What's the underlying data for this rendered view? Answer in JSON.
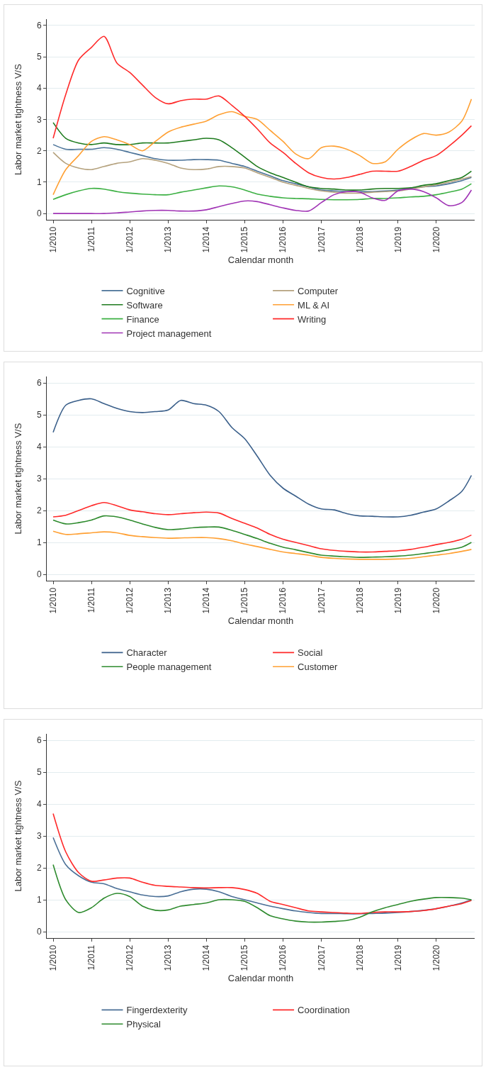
{
  "chart_data": [
    {
      "type": "line",
      "xlabel": "Calendar month",
      "ylabel": "Labor market tightness V/S",
      "grid": "y",
      "legend": "bottom",
      "xlim": [
        "2009-11",
        "2021-01"
      ],
      "ylim": [
        -0.2,
        6.2
      ],
      "yticks": [
        0,
        1,
        2,
        3,
        4,
        5,
        6
      ],
      "xticks": [
        {
          "value": "2010-01",
          "label": "1/2010"
        },
        {
          "value": "2011-01",
          "label": "1/2011"
        },
        {
          "value": "2012-01",
          "label": "1/2012"
        },
        {
          "value": "2013-01",
          "label": "1/2013"
        },
        {
          "value": "2014-01",
          "label": "1/2014"
        },
        {
          "value": "2015-01",
          "label": "1/2015"
        },
        {
          "value": "2016-01",
          "label": "1/2016"
        },
        {
          "value": "2017-01",
          "label": "1/2017"
        },
        {
          "value": "2018-01",
          "label": "1/2018"
        },
        {
          "value": "2019-01",
          "label": "1/2019"
        },
        {
          "value": "2020-01",
          "label": "1/2020"
        }
      ],
      "x": [
        "2010-01",
        "2010-05",
        "2010-09",
        "2011-01",
        "2011-05",
        "2011-09",
        "2012-01",
        "2012-05",
        "2012-09",
        "2013-01",
        "2013-05",
        "2013-09",
        "2014-01",
        "2014-05",
        "2014-09",
        "2015-01",
        "2015-05",
        "2015-09",
        "2016-01",
        "2016-05",
        "2016-09",
        "2017-01",
        "2017-05",
        "2017-09",
        "2018-01",
        "2018-05",
        "2018-09",
        "2019-01",
        "2019-05",
        "2019-09",
        "2020-01",
        "2020-05",
        "2020-09",
        "2020-12"
      ],
      "series": [
        {
          "name": "Cognitive",
          "color": "#4a7298",
          "values": [
            2.2,
            2.05,
            2.05,
            2.05,
            2.1,
            2.05,
            1.95,
            1.85,
            1.75,
            1.7,
            1.7,
            1.72,
            1.72,
            1.7,
            1.6,
            1.5,
            1.35,
            1.2,
            1.05,
            0.95,
            0.85,
            0.75,
            0.72,
            0.7,
            0.7,
            0.7,
            0.72,
            0.75,
            0.8,
            0.85,
            0.88,
            0.95,
            1.05,
            1.15
          ]
        },
        {
          "name": "Computer",
          "color": "#b5a27e",
          "values": [
            1.95,
            1.6,
            1.45,
            1.4,
            1.5,
            1.6,
            1.65,
            1.75,
            1.7,
            1.6,
            1.45,
            1.4,
            1.42,
            1.5,
            1.5,
            1.45,
            1.3,
            1.15,
            1.0,
            0.9,
            0.8,
            0.72,
            0.68,
            0.65,
            0.65,
            0.68,
            0.7,
            0.72,
            0.78,
            0.85,
            0.92,
            1.0,
            1.1,
            1.18
          ]
        },
        {
          "name": "Software",
          "color": "#1e7b1e",
          "values": [
            2.9,
            2.4,
            2.25,
            2.2,
            2.25,
            2.2,
            2.2,
            2.25,
            2.25,
            2.25,
            2.3,
            2.35,
            2.4,
            2.35,
            2.1,
            1.8,
            1.5,
            1.3,
            1.15,
            1.0,
            0.85,
            0.8,
            0.78,
            0.75,
            0.75,
            0.78,
            0.8,
            0.8,
            0.82,
            0.9,
            0.95,
            1.05,
            1.15,
            1.35
          ]
        },
        {
          "name": "ML & AI",
          "color": "#ffa033",
          "values": [
            0.6,
            1.4,
            1.85,
            2.3,
            2.45,
            2.35,
            2.2,
            2.0,
            2.3,
            2.6,
            2.75,
            2.85,
            2.95,
            3.15,
            3.25,
            3.1,
            3.0,
            2.65,
            2.3,
            1.9,
            1.75,
            2.1,
            2.15,
            2.05,
            1.85,
            1.6,
            1.65,
            2.05,
            2.35,
            2.55,
            2.5,
            2.6,
            2.95,
            3.65
          ]
        },
        {
          "name": "Finance",
          "color": "#3cb043",
          "values": [
            0.45,
            0.6,
            0.72,
            0.8,
            0.78,
            0.7,
            0.65,
            0.62,
            0.6,
            0.6,
            0.68,
            0.75,
            0.82,
            0.88,
            0.85,
            0.75,
            0.62,
            0.55,
            0.5,
            0.48,
            0.47,
            0.45,
            0.44,
            0.44,
            0.45,
            0.48,
            0.48,
            0.5,
            0.53,
            0.55,
            0.6,
            0.68,
            0.78,
            0.95
          ]
        },
        {
          "name": "Writing",
          "color": "#ff2a2a",
          "values": [
            2.4,
            3.8,
            4.9,
            5.3,
            5.65,
            4.8,
            4.5,
            4.1,
            3.7,
            3.5,
            3.6,
            3.65,
            3.65,
            3.75,
            3.45,
            3.1,
            2.7,
            2.25,
            1.95,
            1.6,
            1.3,
            1.15,
            1.1,
            1.15,
            1.25,
            1.35,
            1.35,
            1.35,
            1.5,
            1.7,
            1.85,
            2.15,
            2.5,
            2.8
          ]
        },
        {
          "name": "Project management",
          "color": "#a034b5",
          "values": [
            0,
            0,
            0,
            0,
            0,
            0.02,
            0.05,
            0.08,
            0.1,
            0.1,
            0.08,
            0.08,
            0.12,
            0.22,
            0.32,
            0.4,
            0.38,
            0.28,
            0.18,
            0.1,
            0.08,
            0.35,
            0.6,
            0.7,
            0.68,
            0.5,
            0.42,
            0.72,
            0.78,
            0.7,
            0.5,
            0.25,
            0.35,
            0.75
          ]
        }
      ]
    },
    {
      "type": "line",
      "xlabel": "Calendar month",
      "ylabel": "Labor market tightness V/S",
      "grid": "y",
      "legend": "bottom",
      "xlim": [
        "2009-11",
        "2021-01"
      ],
      "ylim": [
        -0.2,
        6.2
      ],
      "yticks": [
        0,
        1,
        2,
        3,
        4,
        5,
        6
      ],
      "xticks": [
        {
          "value": "2010-01",
          "label": "1/2010"
        },
        {
          "value": "2011-01",
          "label": "1/2011"
        },
        {
          "value": "2012-01",
          "label": "1/2012"
        },
        {
          "value": "2013-01",
          "label": "1/2013"
        },
        {
          "value": "2014-01",
          "label": "1/2014"
        },
        {
          "value": "2015-01",
          "label": "1/2015"
        },
        {
          "value": "2016-01",
          "label": "1/2016"
        },
        {
          "value": "2017-01",
          "label": "1/2017"
        },
        {
          "value": "2018-01",
          "label": "1/2018"
        },
        {
          "value": "2019-01",
          "label": "1/2019"
        },
        {
          "value": "2020-01",
          "label": "1/2020"
        }
      ],
      "x": [
        "2010-01",
        "2010-05",
        "2010-09",
        "2011-01",
        "2011-05",
        "2011-09",
        "2012-01",
        "2012-05",
        "2012-09",
        "2013-01",
        "2013-05",
        "2013-09",
        "2014-01",
        "2014-05",
        "2014-09",
        "2015-01",
        "2015-05",
        "2015-09",
        "2016-01",
        "2016-05",
        "2016-09",
        "2017-01",
        "2017-05",
        "2017-09",
        "2018-01",
        "2018-05",
        "2018-09",
        "2019-01",
        "2019-05",
        "2019-09",
        "2020-01",
        "2020-05",
        "2020-09",
        "2020-12"
      ],
      "series": [
        {
          "name": "Character",
          "color": "#3a5f8a",
          "values": [
            4.45,
            5.3,
            5.45,
            5.5,
            5.35,
            5.2,
            5.1,
            5.07,
            5.1,
            5.15,
            5.45,
            5.35,
            5.3,
            5.1,
            4.6,
            4.25,
            3.7,
            3.1,
            2.7,
            2.45,
            2.2,
            2.05,
            2.02,
            1.9,
            1.83,
            1.82,
            1.8,
            1.8,
            1.85,
            1.95,
            2.05,
            2.3,
            2.6,
            3.1
          ]
        },
        {
          "name": "Social",
          "color": "#ff2a2a",
          "values": [
            1.8,
            1.85,
            2.0,
            2.15,
            2.25,
            2.15,
            2.02,
            1.96,
            1.9,
            1.87,
            1.9,
            1.93,
            1.95,
            1.92,
            1.75,
            1.6,
            1.45,
            1.25,
            1.1,
            1.0,
            0.9,
            0.8,
            0.75,
            0.72,
            0.7,
            0.7,
            0.72,
            0.74,
            0.78,
            0.85,
            0.93,
            1.0,
            1.1,
            1.23
          ]
        },
        {
          "name": "People management",
          "color": "#2e8b2e",
          "values": [
            1.7,
            1.58,
            1.62,
            1.7,
            1.83,
            1.8,
            1.7,
            1.58,
            1.47,
            1.4,
            1.42,
            1.46,
            1.48,
            1.48,
            1.38,
            1.25,
            1.12,
            0.97,
            0.85,
            0.77,
            0.68,
            0.6,
            0.57,
            0.55,
            0.53,
            0.54,
            0.55,
            0.57,
            0.6,
            0.65,
            0.7,
            0.77,
            0.85,
            1.0
          ]
        },
        {
          "name": "Customer",
          "color": "#ffa033",
          "values": [
            1.35,
            1.25,
            1.27,
            1.3,
            1.33,
            1.3,
            1.22,
            1.18,
            1.15,
            1.13,
            1.14,
            1.15,
            1.15,
            1.12,
            1.05,
            0.95,
            0.87,
            0.78,
            0.7,
            0.65,
            0.6,
            0.53,
            0.5,
            0.48,
            0.47,
            0.47,
            0.47,
            0.48,
            0.5,
            0.55,
            0.6,
            0.65,
            0.72,
            0.78
          ]
        }
      ]
    },
    {
      "type": "line",
      "xlabel": "Calendar month",
      "ylabel": "Labor market tightness V/S",
      "grid": "y",
      "legend": "bottom",
      "xlim": [
        "2009-11",
        "2021-01"
      ],
      "ylim": [
        -0.2,
        6.2
      ],
      "yticks": [
        0,
        1,
        2,
        3,
        4,
        5,
        6
      ],
      "xticks": [
        {
          "value": "2010-01",
          "label": "1/2010"
        },
        {
          "value": "2011-01",
          "label": "1/2011"
        },
        {
          "value": "2012-01",
          "label": "1/2012"
        },
        {
          "value": "2013-01",
          "label": "1/2013"
        },
        {
          "value": "2014-01",
          "label": "1/2014"
        },
        {
          "value": "2015-01",
          "label": "1/2015"
        },
        {
          "value": "2016-01",
          "label": "1/2016"
        },
        {
          "value": "2017-01",
          "label": "1/2017"
        },
        {
          "value": "2018-01",
          "label": "1/2018"
        },
        {
          "value": "2019-01",
          "label": "1/2019"
        },
        {
          "value": "2020-01",
          "label": "1/2020"
        }
      ],
      "x": [
        "2010-01",
        "2010-05",
        "2010-09",
        "2011-01",
        "2011-05",
        "2011-09",
        "2012-01",
        "2012-05",
        "2012-09",
        "2013-01",
        "2013-05",
        "2013-09",
        "2014-01",
        "2014-05",
        "2014-09",
        "2015-01",
        "2015-05",
        "2015-09",
        "2016-01",
        "2016-05",
        "2016-09",
        "2017-01",
        "2017-05",
        "2017-09",
        "2018-01",
        "2018-05",
        "2018-09",
        "2019-01",
        "2019-05",
        "2019-09",
        "2020-01",
        "2020-05",
        "2020-09",
        "2020-12"
      ],
      "series": [
        {
          "name": "Fingerdexterity",
          "color": "#4a6f96",
          "values": [
            2.95,
            2.1,
            1.75,
            1.55,
            1.5,
            1.35,
            1.25,
            1.15,
            1.1,
            1.12,
            1.25,
            1.33,
            1.33,
            1.25,
            1.1,
            1.0,
            0.9,
            0.8,
            0.72,
            0.65,
            0.6,
            0.57,
            0.57,
            0.56,
            0.56,
            0.57,
            0.58,
            0.6,
            0.63,
            0.67,
            0.72,
            0.8,
            0.9,
            1.0
          ]
        },
        {
          "name": "Coordination",
          "color": "#ff2a2a",
          "values": [
            3.7,
            2.5,
            1.85,
            1.58,
            1.62,
            1.68,
            1.68,
            1.55,
            1.45,
            1.42,
            1.4,
            1.38,
            1.37,
            1.38,
            1.38,
            1.32,
            1.2,
            0.95,
            0.85,
            0.75,
            0.65,
            0.62,
            0.6,
            0.58,
            0.57,
            0.6,
            0.62,
            0.62,
            0.63,
            0.66,
            0.72,
            0.8,
            0.88,
            0.98
          ]
        },
        {
          "name": "Physical",
          "color": "#2e8b2e",
          "values": [
            2.1,
            1.0,
            0.6,
            0.75,
            1.05,
            1.2,
            1.1,
            0.8,
            0.67,
            0.68,
            0.8,
            0.85,
            0.9,
            1.0,
            1.0,
            0.95,
            0.75,
            0.5,
            0.4,
            0.33,
            0.3,
            0.3,
            0.32,
            0.35,
            0.45,
            0.62,
            0.75,
            0.85,
            0.95,
            1.02,
            1.07,
            1.07,
            1.05,
            1.0
          ]
        }
      ]
    }
  ]
}
